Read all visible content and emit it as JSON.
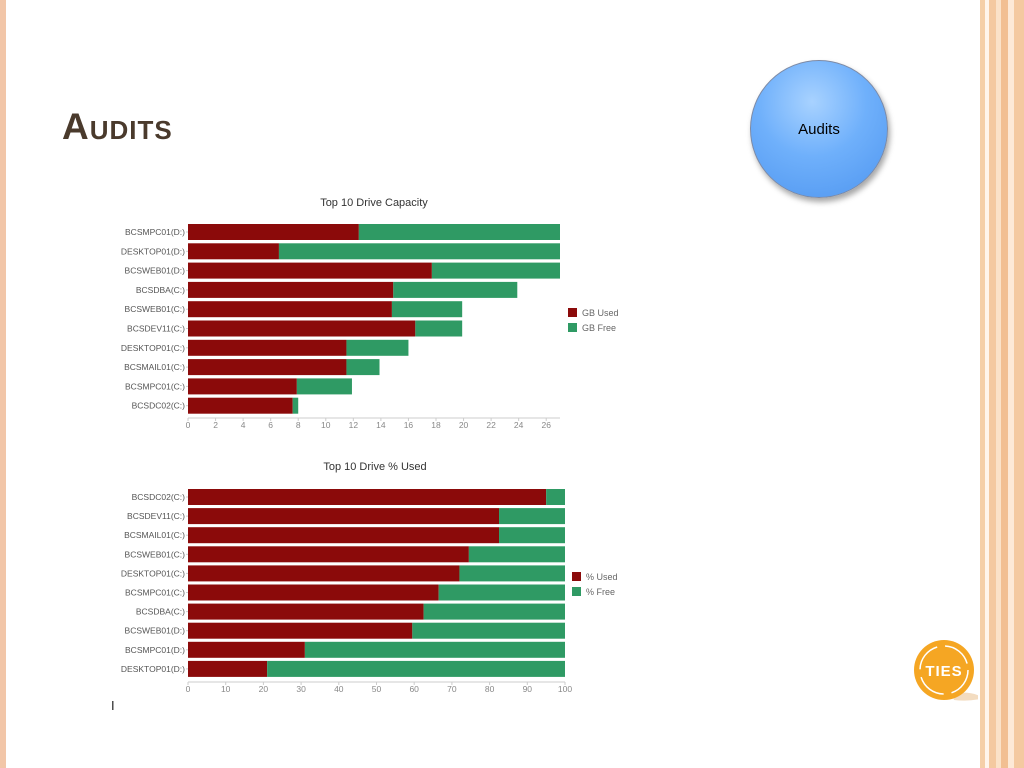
{
  "slide": {
    "title": "Audits",
    "nav_button_label": "Audits",
    "logo_text": "TIES",
    "cursor_glyph": "I"
  },
  "colors": {
    "used": "#8b0a0a",
    "free": "#2f9a64",
    "button": "#6fb0fb",
    "title": "#4a3a2c",
    "logo": "#f5a623"
  },
  "chart_data": [
    {
      "type": "bar",
      "orientation": "horizontal",
      "stacked": true,
      "title": "Top 10 Drive Capacity",
      "categories": [
        "BCSMPC01(D:)",
        "DESKTOP01(D:)",
        "BCSWEB01(D:)",
        "BCSDBA(C:)",
        "BCSWEB01(C:)",
        "BCSDEV11(C:)",
        "DESKTOP01(C:)",
        "BCSMAIL01(C:)",
        "BCSMPC01(C:)",
        "BCSDC02(C:)"
      ],
      "series": [
        {
          "name": "GB Used",
          "values": [
            12.4,
            6.6,
            17.7,
            14.9,
            14.8,
            16.5,
            11.5,
            11.5,
            7.9,
            7.6
          ]
        },
        {
          "name": "GB Free",
          "values": [
            14.6,
            20.4,
            9.3,
            9.0,
            5.1,
            3.4,
            4.5,
            2.4,
            4.0,
            0.4
          ]
        }
      ],
      "xlim": [
        0,
        27
      ],
      "xticks": [
        0,
        2,
        4,
        6,
        8,
        10,
        12,
        14,
        16,
        18,
        20,
        22,
        24,
        26
      ],
      "xlabel": "",
      "ylabel": "",
      "grid": false,
      "legend": "right"
    },
    {
      "type": "bar",
      "orientation": "horizontal",
      "stacked": true,
      "title": "Top 10 Drive % Used",
      "categories": [
        "BCSDC02(C:)",
        "BCSDEV11(C:)",
        "BCSMAIL01(C:)",
        "BCSWEB01(C:)",
        "DESKTOP01(C:)",
        "BCSMPC01(C:)",
        "BCSDBA(C:)",
        "BCSWEB01(D:)",
        "BCSMPC01(D:)",
        "DESKTOP01(D:)"
      ],
      "series": [
        {
          "name": "% Used",
          "values": [
            95,
            82.5,
            82.5,
            74.5,
            72,
            66.5,
            62.5,
            59.5,
            31,
            21
          ]
        },
        {
          "name": "% Free",
          "values": [
            5,
            17.5,
            17.5,
            25.5,
            28,
            33.5,
            37.5,
            40.5,
            69,
            79
          ]
        }
      ],
      "xlim": [
        0,
        100
      ],
      "xticks": [
        0,
        10,
        20,
        30,
        40,
        50,
        60,
        70,
        80,
        90,
        100
      ],
      "xlabel": "",
      "ylabel": "",
      "grid": false,
      "legend": "right"
    }
  ]
}
